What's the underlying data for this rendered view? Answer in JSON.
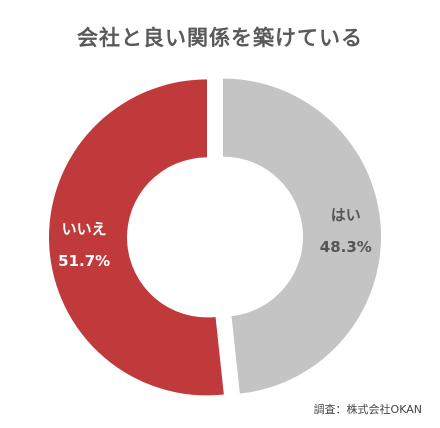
{
  "chart_data": {
    "type": "pie",
    "title": "会社と良い関係を築けている",
    "categories": [
      "はい",
      "いいえ"
    ],
    "values": [
      48.3,
      51.7
    ],
    "value_labels": [
      "48.3%",
      "51.7%"
    ],
    "colors": [
      "#c4c4c4",
      "#c0393b"
    ],
    "label_colors": [
      "#555555",
      "#ffffff"
    ],
    "donut": true,
    "exploded": true
  },
  "source_note": "調査：株式会社OKAN"
}
